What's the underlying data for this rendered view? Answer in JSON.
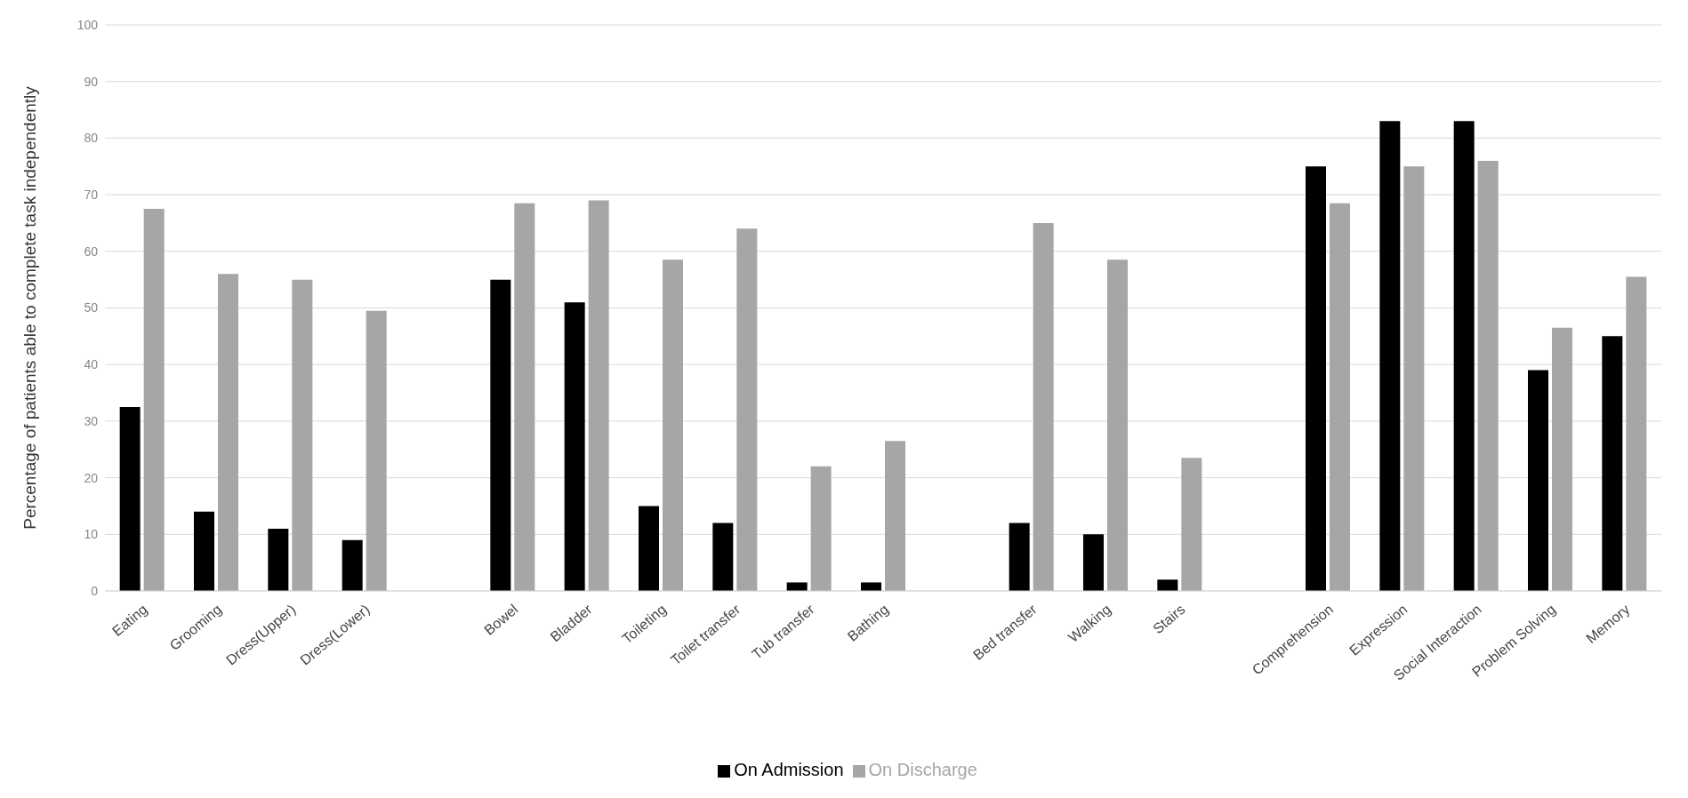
{
  "chart_data": {
    "type": "bar",
    "ylabel": "Percentage of patients able to complete task independently",
    "categories": [
      "Eating",
      "Grooming",
      "Dress(Upper)",
      "Dress(Lower)",
      null,
      "Bowel",
      "Bladder",
      "Toileting",
      "Toilet transfer",
      "Tub transfer",
      "Bathing",
      null,
      "Bed transfer",
      "Walking",
      "Stairs",
      null,
      "Comprehension",
      "Expression",
      "Social Interaction",
      "Problem Solving",
      "Memory"
    ],
    "series": [
      {
        "name": "On Admission",
        "color": "#000000",
        "values": [
          32.5,
          14,
          11,
          9,
          null,
          55,
          51,
          15,
          12,
          1.5,
          1.5,
          null,
          12,
          10,
          2,
          null,
          75,
          83,
          83,
          39,
          45
        ]
      },
      {
        "name": "On Discharge",
        "color": "#a6a6a6",
        "values": [
          67.5,
          56,
          55,
          49.5,
          null,
          68.5,
          69,
          58.5,
          64,
          22,
          26.5,
          null,
          65,
          58.5,
          23.5,
          null,
          68.5,
          75,
          76,
          46.5,
          55.5
        ]
      }
    ],
    "ylim": [
      0,
      100
    ],
    "yticks": [
      0,
      10,
      20,
      30,
      40,
      50,
      60,
      70,
      80,
      90,
      100
    ],
    "grid": "y",
    "legend": "bottom"
  }
}
